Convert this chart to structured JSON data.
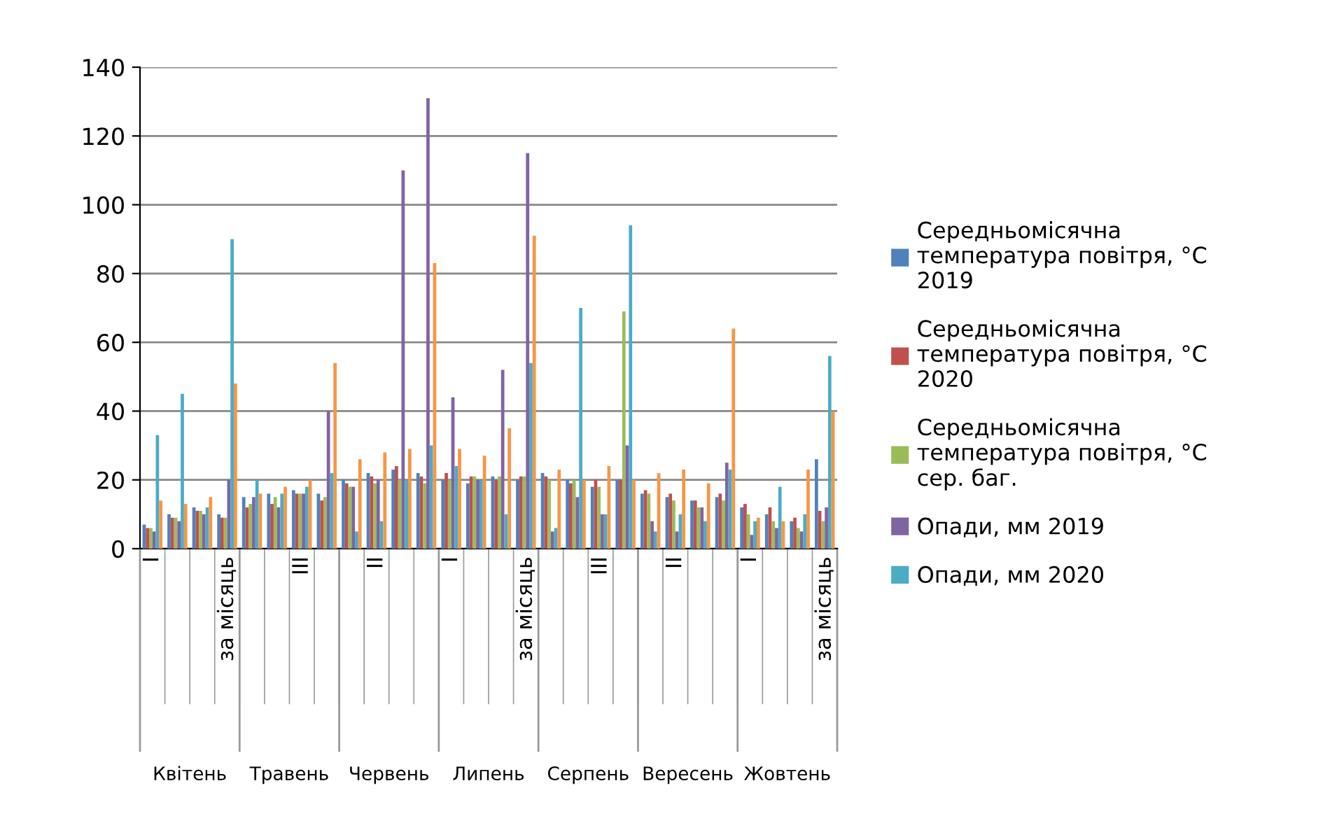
{
  "chart_data": {
    "type": "bar",
    "categories": [
      "I",
      null,
      null,
      "за місяць",
      null,
      null,
      "III",
      null,
      null,
      "II",
      null,
      null,
      "I",
      null,
      null,
      "за місяць",
      null,
      null,
      "III",
      null,
      null,
      "II",
      null,
      null,
      "I",
      null,
      null,
      "за місяць"
    ],
    "series": [
      {
        "name": "Середньомісячна температура повітря, °С 2019",
        "color": "#4f81bd",
        "values": [
          7,
          10,
          12,
          10,
          15,
          16,
          17,
          16,
          20,
          22,
          23,
          22,
          20,
          19,
          21,
          20,
          22,
          20,
          18,
          20,
          16,
          15,
          14,
          15,
          12,
          10,
          8,
          26
        ]
      },
      {
        "name": "Середньомісячна температура повітря, °С 2020",
        "color": "#c0504d",
        "values": [
          6,
          9,
          11,
          9,
          12,
          13,
          16,
          14,
          19,
          21,
          24,
          21,
          22,
          21,
          20,
          21,
          21,
          19,
          20,
          20,
          17,
          16,
          14,
          16,
          13,
          12,
          9,
          11
        ]
      },
      {
        "name": "Середньомісячна температура повітря, °С сер. баг.",
        "color": "#9bbb59",
        "values": [
          6,
          9,
          11,
          9,
          13,
          15,
          16,
          15,
          18,
          19,
          20,
          19,
          20,
          21,
          21,
          21,
          20,
          20,
          18,
          69,
          16,
          14,
          12,
          14,
          10,
          8,
          6,
          8
        ]
      },
      {
        "name": "Опади, мм 2019",
        "color": "#8064a2",
        "values": [
          5,
          8,
          10,
          20,
          15,
          12,
          16,
          40,
          18,
          20,
          110,
          131,
          44,
          20,
          52,
          115,
          5,
          15,
          10,
          30,
          8,
          5,
          12,
          25,
          4,
          6,
          5,
          12
        ]
      },
      {
        "name": "Опади, мм 2020",
        "color": "#4bacc6",
        "values": [
          33,
          45,
          12,
          90,
          20,
          16,
          18,
          22,
          5,
          8,
          20,
          30,
          24,
          20,
          10,
          54,
          6,
          70,
          10,
          94,
          5,
          10,
          8,
          23,
          8,
          18,
          10,
          56
        ]
      },
      {
        "color": "#f79646",
        "values": [
          14,
          13,
          15,
          48,
          16,
          18,
          20,
          54,
          26,
          28,
          29,
          83,
          29,
          27,
          35,
          91,
          23,
          20,
          24,
          20,
          22,
          23,
          19,
          64,
          9,
          8,
          23,
          40
        ]
      }
    ],
    "ylim": [
      0,
      140
    ],
    "yticks": [
      0,
      20,
      40,
      60,
      80,
      100,
      120,
      140
    ],
    "grid": "y",
    "legend": "right",
    "annotations": [
      "Квітень",
      "Травень",
      "Червень",
      "Липень",
      "Серпень",
      "Вересень",
      "Жовтень"
    ]
  }
}
